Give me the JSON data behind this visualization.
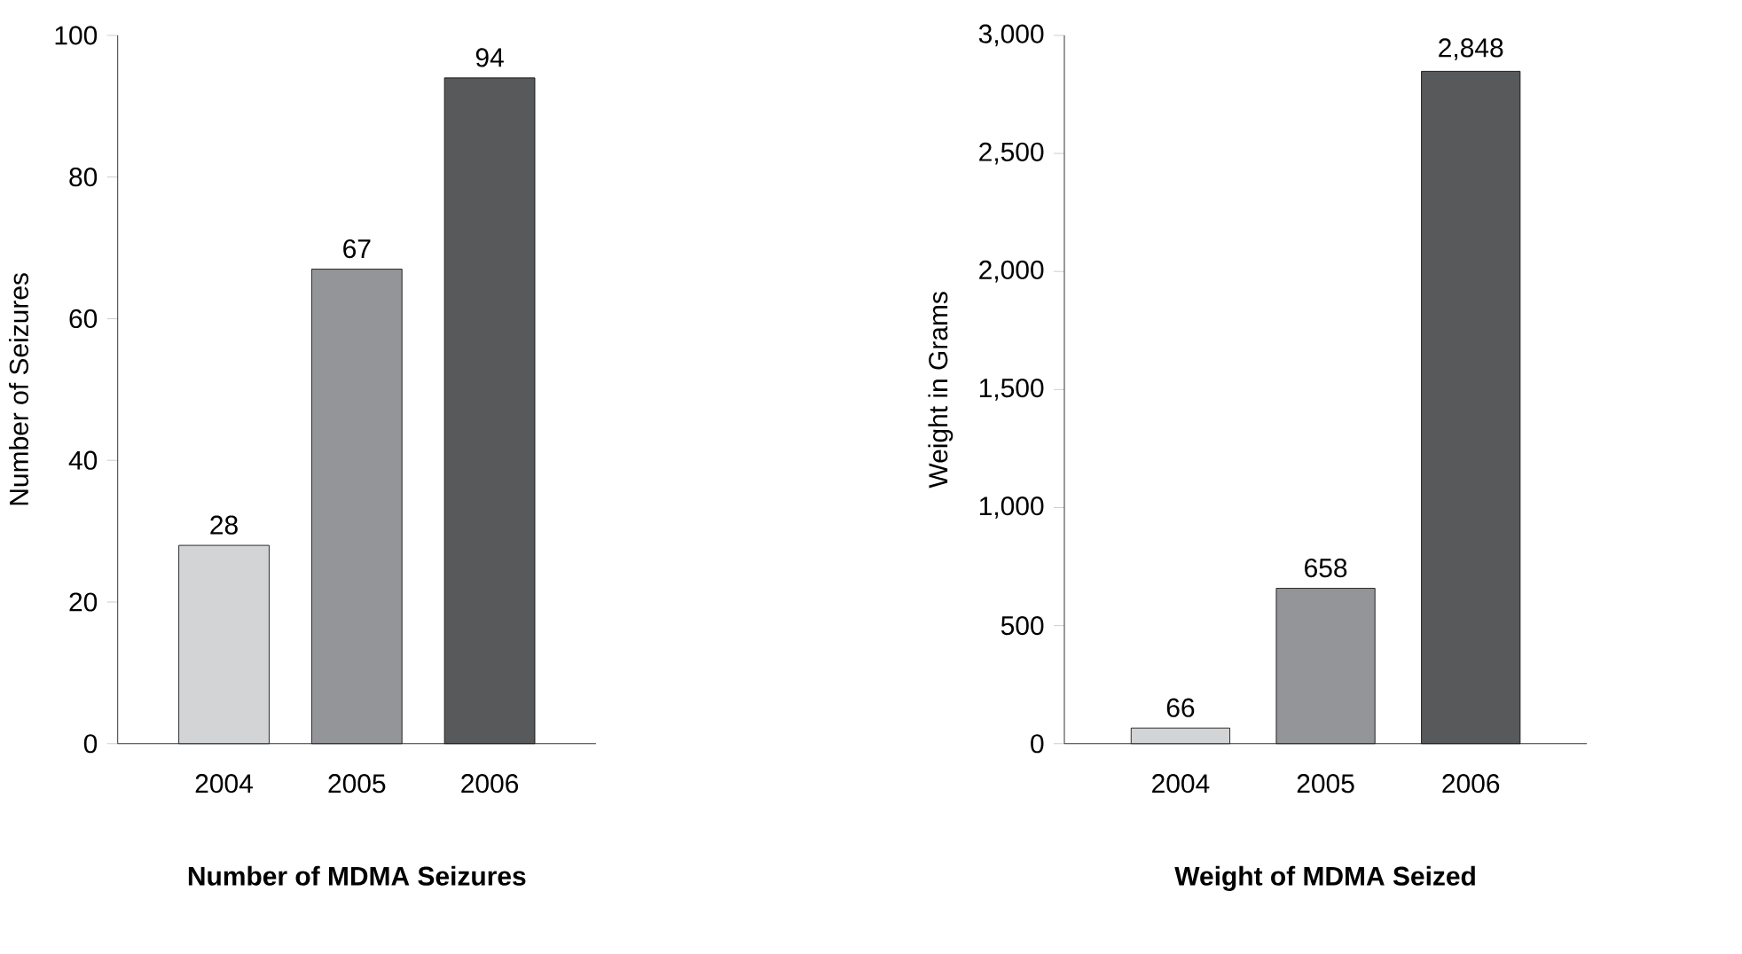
{
  "chart_data": [
    {
      "type": "bar",
      "title": "Number of MDMA Seizures",
      "ylabel": "Number of Seizures",
      "categories": [
        "2004",
        "2005",
        "2006"
      ],
      "values": [
        28,
        67,
        94
      ],
      "colors": [
        "#d3d4d6",
        "#939598",
        "#58595b"
      ],
      "ylim": [
        0,
        100
      ],
      "yticks": [
        0,
        20,
        40,
        60,
        80,
        100
      ],
      "value_labels": [
        "28",
        "67",
        "94"
      ]
    },
    {
      "type": "bar",
      "title": "Weight of MDMA Seized",
      "ylabel": "Weight in Grams",
      "categories": [
        "2004",
        "2005",
        "2006"
      ],
      "values": [
        66,
        658,
        2848
      ],
      "colors": [
        "#d3d4d6",
        "#939598",
        "#58595b"
      ],
      "ylim": [
        0,
        3000
      ],
      "yticks": [
        0,
        500,
        {
          "value": 1000,
          "label": "1,000"
        },
        {
          "value": 1500,
          "label": "1,500"
        },
        {
          "value": 2000,
          "label": "2,000"
        },
        {
          "value": 2500,
          "label": "2,500"
        },
        {
          "value": 3000,
          "label": "3,000"
        }
      ],
      "value_labels": [
        "66",
        "658",
        "2,848"
      ]
    }
  ]
}
